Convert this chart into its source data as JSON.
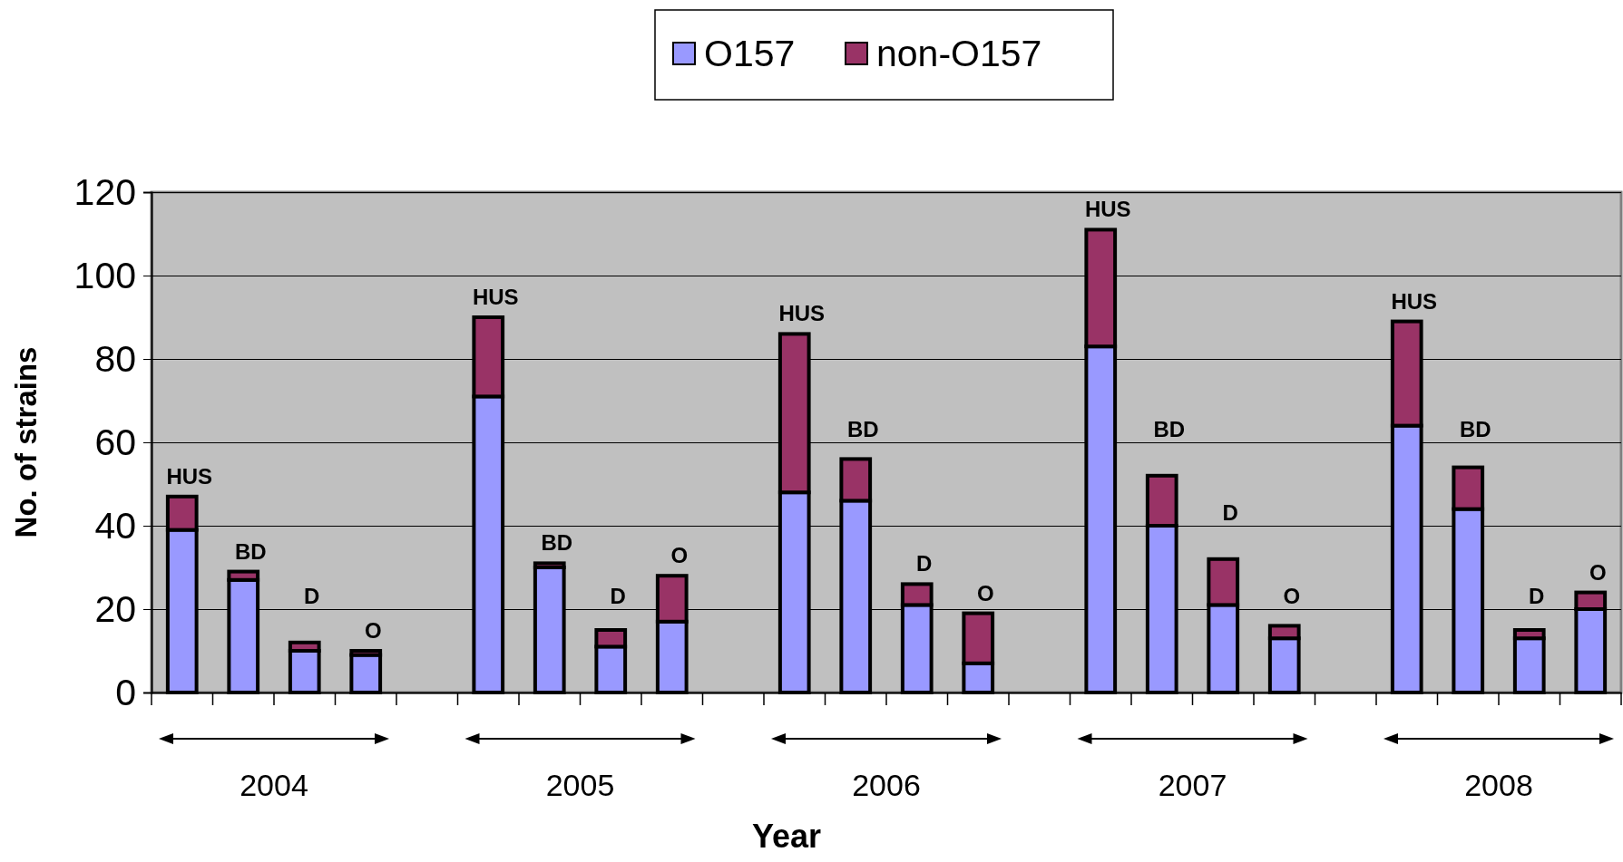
{
  "chart_data": {
    "type": "bar",
    "stacked": true,
    "xlabel": "Year",
    "ylabel": "No. of strains",
    "categories": [
      null,
      null,
      null,
      null,
      null,
      null,
      null,
      null,
      null,
      null,
      null,
      null,
      null,
      null,
      null,
      null,
      null,
      null,
      null,
      null,
      null,
      null,
      null,
      null
    ],
    "series": [
      {
        "name": "O157",
        "color": "#9999ff",
        "values": [
          39,
          27,
          10,
          9,
          null,
          71,
          30,
          11,
          17,
          null,
          48,
          46,
          21,
          7,
          null,
          83,
          40,
          21,
          13,
          null,
          64,
          44,
          13,
          20
        ]
      },
      {
        "name": "non-O157",
        "color": "#993366",
        "values": [
          8,
          2,
          2,
          1,
          null,
          19,
          1,
          4,
          11,
          null,
          38,
          10,
          5,
          12,
          null,
          28,
          12,
          11,
          3,
          null,
          25,
          10,
          2,
          4
        ],
        "value_labels": [
          "HUS",
          "BD",
          "D",
          "O",
          null,
          "HUS",
          "BD",
          "D",
          "O",
          null,
          "HUS",
          "BD",
          "D",
          "O",
          null,
          "HUS",
          "BD",
          "D",
          "O",
          null,
          "HUS",
          "BD",
          "D",
          "O"
        ]
      }
    ],
    "annotations": [
      "2004",
      "2005",
      "2006",
      "2007",
      "2008"
    ],
    "ylim": [
      0,
      120
    ],
    "yticks": [
      0,
      20,
      40,
      60,
      80,
      100,
      120
    ],
    "grid": "y",
    "legend": "top"
  }
}
